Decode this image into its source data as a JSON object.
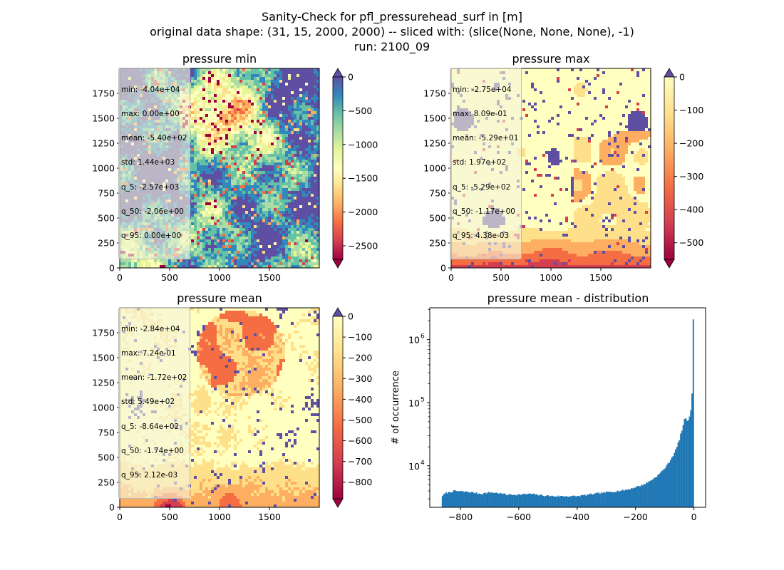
{
  "figure": {
    "title_lines": [
      "Sanity-Check for pfl_pressurehead_surf in [m]",
      "original data shape: (31, 15, 2000, 2000) -- sliced with: (slice(None, None, None), -1)",
      "run: 2100_09"
    ]
  },
  "colormap_spectral": [
    "#9e0142",
    "#d53e4f",
    "#f46d43",
    "#fdae61",
    "#fee08b",
    "#ffffbf",
    "#e6f598",
    "#abdda4",
    "#66c2a5",
    "#3288bd",
    "#5e4fa2"
  ],
  "chart_data": [
    {
      "type": "heatmap",
      "title": "pressure min",
      "xlim": [
        0,
        2000
      ],
      "ylim": [
        0,
        2000
      ],
      "xticks": [
        0,
        500,
        1000,
        1500
      ],
      "yticks": [
        0,
        250,
        500,
        750,
        1000,
        1250,
        1500,
        1750
      ],
      "colorbar": {
        "vmin": -2700,
        "vmax": 0,
        "ticks": [
          0,
          -500,
          -1000,
          -1500,
          -2000,
          -2500
        ],
        "extend": "both"
      },
      "stats": [
        "min: -4.04e+04",
        "max: 0.00e+00",
        "mean: -5.40e+02",
        "std: 1.44e+03",
        "q_5: -2.57e+03",
        "q_50: -2.06e+00",
        "q_95: 0.00e+00"
      ]
    },
    {
      "type": "heatmap",
      "title": "pressure max",
      "xlim": [
        0,
        2000
      ],
      "ylim": [
        0,
        2000
      ],
      "xticks": [
        0,
        500,
        1000,
        1500
      ],
      "yticks": [
        0,
        250,
        500,
        750,
        1000,
        1250,
        1500,
        1750
      ],
      "colorbar": {
        "vmin": -550,
        "vmax": 0,
        "ticks": [
          0,
          -100,
          -200,
          -300,
          -400,
          -500
        ],
        "extend": "both"
      },
      "stats": [
        "min: -2.75e+04",
        "max: 8.09e-01",
        "mean: -5.29e+01",
        "std: 1.97e+02",
        "q_5: -5.29e+02",
        "q_50: -1.17e+00",
        "q_95: 4.38e-03"
      ]
    },
    {
      "type": "heatmap",
      "title": "pressure mean",
      "xlim": [
        0,
        2000
      ],
      "ylim": [
        0,
        2000
      ],
      "xticks": [
        0,
        500,
        1000,
        1500
      ],
      "yticks": [
        0,
        250,
        500,
        750,
        1000,
        1250,
        1500,
        1750
      ],
      "colorbar": {
        "vmin": -880,
        "vmax": 0,
        "ticks": [
          0,
          -100,
          -200,
          -300,
          -400,
          -500,
          -600,
          -700,
          -800
        ],
        "extend": "both"
      },
      "stats": [
        "min: -2.84e+04",
        "max: 7.24e-01",
        "mean: -1.72e+02",
        "std: 5.49e+02",
        "q_5: -8.64e+02",
        "q_50: -1.74e+00",
        "q_95: 2.12e-03"
      ]
    },
    {
      "type": "bar",
      "title": "pressure mean - distribution",
      "ylabel": "# of occurrence",
      "yscale": "log",
      "xlim": [
        -905,
        40
      ],
      "ylim": [
        2200,
        3200000
      ],
      "xticks": [
        -800,
        -600,
        -400,
        -200,
        0
      ],
      "yticks": [
        10000,
        100000,
        1000000
      ],
      "ytick_labels": [
        "10",
        "10",
        "10"
      ],
      "ytick_exponents": [
        "4",
        "5",
        "6"
      ],
      "bin_range": [
        -864,
        0
      ],
      "bin_count": 200,
      "color": "#1f77b4",
      "anchors_x": [
        -864,
        -850,
        -820,
        -790,
        -760,
        -730,
        -700,
        -670,
        -640,
        -600,
        -560,
        -520,
        -480,
        -440,
        -400,
        -380,
        -360,
        -340,
        -320,
        -300,
        -280,
        -260,
        -240,
        -220,
        -200,
        -180,
        -160,
        -140,
        -120,
        -100,
        -90,
        -80,
        -70,
        -60,
        -50,
        -45,
        -40,
        -35,
        -30,
        -25,
        -20,
        -15,
        -10,
        -6,
        -2
      ],
      "anchors_y": [
        3300,
        3700,
        4000,
        3900,
        3800,
        3600,
        3800,
        3700,
        3500,
        3500,
        3600,
        3400,
        3300,
        3300,
        3300,
        3400,
        3500,
        3600,
        3700,
        3800,
        3900,
        4000,
        4100,
        4300,
        4600,
        4900,
        5400,
        6200,
        7300,
        9200,
        10500,
        12500,
        15000,
        19000,
        26000,
        32000,
        38000,
        48000,
        60000,
        54000,
        50000,
        62000,
        80000,
        150000,
        2100000
      ]
    }
  ]
}
